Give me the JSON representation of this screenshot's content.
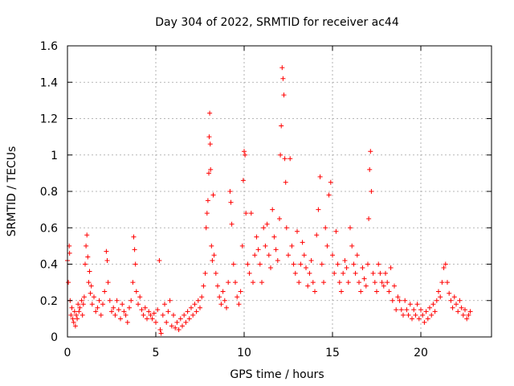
{
  "chart_data": {
    "type": "scatter",
    "title": "Day 304 of 2022, SRMTID for receiver ac44",
    "xlabel": "GPS time / hours",
    "ylabel": "SRMTID / TECUs",
    "xlim": [
      0,
      24
    ],
    "ylim": [
      0,
      1.6
    ],
    "xticks": [
      0,
      5,
      10,
      15,
      20
    ],
    "yticks": [
      0,
      0.2,
      0.4,
      0.6,
      0.8,
      1,
      1.2,
      1.4,
      1.6
    ],
    "xtick_labels": [
      "0",
      "5",
      "10",
      "15",
      "20"
    ],
    "ytick_labels": [
      "0",
      "0.2",
      "0.4",
      "0.6",
      "0.8",
      "1",
      "1.2",
      "1.4",
      "1.6"
    ],
    "grid": true,
    "marker": "plus",
    "color": "#ff0000",
    "series": [
      {
        "name": "SRMTID",
        "points": [
          [
            0.0,
            0.42
          ],
          [
            0.05,
            0.3
          ],
          [
            0.1,
            0.5
          ],
          [
            0.12,
            0.46
          ],
          [
            0.15,
            0.2
          ],
          [
            0.2,
            0.12
          ],
          [
            0.25,
            0.16
          ],
          [
            0.3,
            0.1
          ],
          [
            0.35,
            0.08
          ],
          [
            0.4,
            0.14
          ],
          [
            0.45,
            0.06
          ],
          [
            0.5,
            0.12
          ],
          [
            0.55,
            0.1
          ],
          [
            0.6,
            0.18
          ],
          [
            0.65,
            0.14
          ],
          [
            0.7,
            0.16
          ],
          [
            0.8,
            0.2
          ],
          [
            0.85,
            0.12
          ],
          [
            0.9,
            0.18
          ],
          [
            0.95,
            0.22
          ],
          [
            1.0,
            0.4
          ],
          [
            1.05,
            0.5
          ],
          [
            1.1,
            0.56
          ],
          [
            1.15,
            0.44
          ],
          [
            1.2,
            0.3
          ],
          [
            1.25,
            0.36
          ],
          [
            1.3,
            0.24
          ],
          [
            1.35,
            0.28
          ],
          [
            1.4,
            0.18
          ],
          [
            1.5,
            0.22
          ],
          [
            1.6,
            0.14
          ],
          [
            1.7,
            0.16
          ],
          [
            1.8,
            0.2
          ],
          [
            1.9,
            0.12
          ],
          [
            2.0,
            0.18
          ],
          [
            2.1,
            0.25
          ],
          [
            2.2,
            0.47
          ],
          [
            2.25,
            0.42
          ],
          [
            2.3,
            0.3
          ],
          [
            2.4,
            0.2
          ],
          [
            2.5,
            0.14
          ],
          [
            2.6,
            0.16
          ],
          [
            2.7,
            0.12
          ],
          [
            2.8,
            0.2
          ],
          [
            2.9,
            0.15
          ],
          [
            3.0,
            0.1
          ],
          [
            3.1,
            0.18
          ],
          [
            3.2,
            0.14
          ],
          [
            3.3,
            0.12
          ],
          [
            3.4,
            0.08
          ],
          [
            3.5,
            0.16
          ],
          [
            3.6,
            0.2
          ],
          [
            3.7,
            0.3
          ],
          [
            3.75,
            0.55
          ],
          [
            3.8,
            0.48
          ],
          [
            3.85,
            0.4
          ],
          [
            3.9,
            0.25
          ],
          [
            4.0,
            0.18
          ],
          [
            4.1,
            0.22
          ],
          [
            4.2,
            0.15
          ],
          [
            4.3,
            0.12
          ],
          [
            4.4,
            0.16
          ],
          [
            4.5,
            0.1
          ],
          [
            4.6,
            0.14
          ],
          [
            4.7,
            0.12
          ],
          [
            4.8,
            0.1
          ],
          [
            4.9,
            0.13
          ],
          [
            5.0,
            0.08
          ],
          [
            5.1,
            0.15
          ],
          [
            5.2,
            0.42
          ],
          [
            5.25,
            0.04
          ],
          [
            5.3,
            0.02
          ],
          [
            5.4,
            0.12
          ],
          [
            5.5,
            0.18
          ],
          [
            5.6,
            0.08
          ],
          [
            5.7,
            0.14
          ],
          [
            5.8,
            0.2
          ],
          [
            5.9,
            0.06
          ],
          [
            6.0,
            0.12
          ],
          [
            6.1,
            0.05
          ],
          [
            6.2,
            0.08
          ],
          [
            6.3,
            0.04
          ],
          [
            6.4,
            0.1
          ],
          [
            6.5,
            0.06
          ],
          [
            6.6,
            0.12
          ],
          [
            6.7,
            0.08
          ],
          [
            6.8,
            0.14
          ],
          [
            6.9,
            0.1
          ],
          [
            7.0,
            0.16
          ],
          [
            7.1,
            0.12
          ],
          [
            7.2,
            0.18
          ],
          [
            7.3,
            0.14
          ],
          [
            7.4,
            0.2
          ],
          [
            7.5,
            0.16
          ],
          [
            7.6,
            0.22
          ],
          [
            7.7,
            0.28
          ],
          [
            7.8,
            0.35
          ],
          [
            7.85,
            0.6
          ],
          [
            7.9,
            0.68
          ],
          [
            7.95,
            0.75
          ],
          [
            8.0,
            0.9
          ],
          [
            8.02,
            1.1
          ],
          [
            8.05,
            1.23
          ],
          [
            8.08,
            1.06
          ],
          [
            8.1,
            0.92
          ],
          [
            8.15,
            0.5
          ],
          [
            8.2,
            0.42
          ],
          [
            8.25,
            0.78
          ],
          [
            8.3,
            0.45
          ],
          [
            8.4,
            0.35
          ],
          [
            8.5,
            0.28
          ],
          [
            8.6,
            0.22
          ],
          [
            8.7,
            0.18
          ],
          [
            8.8,
            0.25
          ],
          [
            8.9,
            0.2
          ],
          [
            9.0,
            0.16
          ],
          [
            9.1,
            0.3
          ],
          [
            9.2,
            0.8
          ],
          [
            9.25,
            0.74
          ],
          [
            9.3,
            0.62
          ],
          [
            9.4,
            0.4
          ],
          [
            9.5,
            0.3
          ],
          [
            9.6,
            0.22
          ],
          [
            9.7,
            0.18
          ],
          [
            9.8,
            0.25
          ],
          [
            9.9,
            0.5
          ],
          [
            9.95,
            0.86
          ],
          [
            10.0,
            1.02
          ],
          [
            10.05,
            1.0
          ],
          [
            10.1,
            0.68
          ],
          [
            10.2,
            0.4
          ],
          [
            10.3,
            0.35
          ],
          [
            10.4,
            0.68
          ],
          [
            10.5,
            0.3
          ],
          [
            10.6,
            0.45
          ],
          [
            10.7,
            0.55
          ],
          [
            10.8,
            0.48
          ],
          [
            10.9,
            0.4
          ],
          [
            11.0,
            0.3
          ],
          [
            11.1,
            0.6
          ],
          [
            11.2,
            0.5
          ],
          [
            11.3,
            0.62
          ],
          [
            11.4,
            0.45
          ],
          [
            11.5,
            0.38
          ],
          [
            11.6,
            0.7
          ],
          [
            11.7,
            0.55
          ],
          [
            11.8,
            0.48
          ],
          [
            11.9,
            0.42
          ],
          [
            12.0,
            0.65
          ],
          [
            12.05,
            1.0
          ],
          [
            12.1,
            1.16
          ],
          [
            12.15,
            1.48
          ],
          [
            12.2,
            1.42
          ],
          [
            12.25,
            1.33
          ],
          [
            12.3,
            0.98
          ],
          [
            12.35,
            0.85
          ],
          [
            12.4,
            0.6
          ],
          [
            12.5,
            0.45
          ],
          [
            12.6,
            0.98
          ],
          [
            12.7,
            0.5
          ],
          [
            12.8,
            0.4
          ],
          [
            12.9,
            0.35
          ],
          [
            13.0,
            0.58
          ],
          [
            13.1,
            0.3
          ],
          [
            13.2,
            0.4
          ],
          [
            13.3,
            0.52
          ],
          [
            13.4,
            0.45
          ],
          [
            13.5,
            0.38
          ],
          [
            13.6,
            0.28
          ],
          [
            13.7,
            0.35
          ],
          [
            13.8,
            0.42
          ],
          [
            13.9,
            0.3
          ],
          [
            14.0,
            0.25
          ],
          [
            14.1,
            0.56
          ],
          [
            14.2,
            0.7
          ],
          [
            14.3,
            0.88
          ],
          [
            14.4,
            0.4
          ],
          [
            14.5,
            0.3
          ],
          [
            14.6,
            0.6
          ],
          [
            14.7,
            0.5
          ],
          [
            14.8,
            0.78
          ],
          [
            14.9,
            0.85
          ],
          [
            15.0,
            0.45
          ],
          [
            15.1,
            0.35
          ],
          [
            15.2,
            0.58
          ],
          [
            15.3,
            0.4
          ],
          [
            15.4,
            0.3
          ],
          [
            15.5,
            0.25
          ],
          [
            15.6,
            0.35
          ],
          [
            15.7,
            0.42
          ],
          [
            15.8,
            0.38
          ],
          [
            15.9,
            0.3
          ],
          [
            16.0,
            0.6
          ],
          [
            16.1,
            0.5
          ],
          [
            16.2,
            0.4
          ],
          [
            16.3,
            0.35
          ],
          [
            16.4,
            0.45
          ],
          [
            16.5,
            0.3
          ],
          [
            16.6,
            0.25
          ],
          [
            16.7,
            0.38
          ],
          [
            16.8,
            0.32
          ],
          [
            16.9,
            0.28
          ],
          [
            17.0,
            0.4
          ],
          [
            17.05,
            0.65
          ],
          [
            17.1,
            0.92
          ],
          [
            17.15,
            1.02
          ],
          [
            17.2,
            0.8
          ],
          [
            17.3,
            0.35
          ],
          [
            17.4,
            0.3
          ],
          [
            17.5,
            0.25
          ],
          [
            17.6,
            0.4
          ],
          [
            17.7,
            0.35
          ],
          [
            17.8,
            0.3
          ],
          [
            17.9,
            0.28
          ],
          [
            18.0,
            0.35
          ],
          [
            18.1,
            0.3
          ],
          [
            18.2,
            0.25
          ],
          [
            18.3,
            0.38
          ],
          [
            18.4,
            0.2
          ],
          [
            18.5,
            0.28
          ],
          [
            18.6,
            0.15
          ],
          [
            18.7,
            0.22
          ],
          [
            18.8,
            0.2
          ],
          [
            18.9,
            0.15
          ],
          [
            19.0,
            0.12
          ],
          [
            19.1,
            0.2
          ],
          [
            19.2,
            0.15
          ],
          [
            19.3,
            0.12
          ],
          [
            19.4,
            0.18
          ],
          [
            19.5,
            0.1
          ],
          [
            19.6,
            0.15
          ],
          [
            19.7,
            0.12
          ],
          [
            19.8,
            0.18
          ],
          [
            19.9,
            0.1
          ],
          [
            20.0,
            0.15
          ],
          [
            20.1,
            0.12
          ],
          [
            20.2,
            0.08
          ],
          [
            20.3,
            0.14
          ],
          [
            20.4,
            0.1
          ],
          [
            20.5,
            0.16
          ],
          [
            20.6,
            0.12
          ],
          [
            20.7,
            0.18
          ],
          [
            20.8,
            0.14
          ],
          [
            20.9,
            0.2
          ],
          [
            21.0,
            0.25
          ],
          [
            21.1,
            0.22
          ],
          [
            21.2,
            0.3
          ],
          [
            21.3,
            0.38
          ],
          [
            21.4,
            0.4
          ],
          [
            21.5,
            0.3
          ],
          [
            21.6,
            0.24
          ],
          [
            21.7,
            0.2
          ],
          [
            21.8,
            0.16
          ],
          [
            21.9,
            0.22
          ],
          [
            22.0,
            0.18
          ],
          [
            22.1,
            0.14
          ],
          [
            22.2,
            0.2
          ],
          [
            22.3,
            0.16
          ],
          [
            22.4,
            0.12
          ],
          [
            22.5,
            0.15
          ],
          [
            22.6,
            0.1
          ],
          [
            22.7,
            0.12
          ],
          [
            22.8,
            0.14
          ]
        ]
      }
    ]
  }
}
